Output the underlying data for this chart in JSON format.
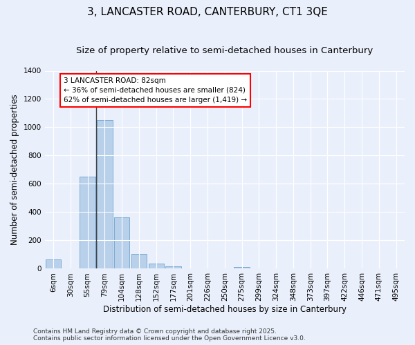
{
  "title": "3, LANCASTER ROAD, CANTERBURY, CT1 3QE",
  "subtitle": "Size of property relative to semi-detached houses in Canterbury",
  "xlabel": "Distribution of semi-detached houses by size in Canterbury",
  "ylabel": "Number of semi-detached properties",
  "categories": [
    "6sqm",
    "30sqm",
    "55sqm",
    "79sqm",
    "104sqm",
    "128sqm",
    "152sqm",
    "177sqm",
    "201sqm",
    "226sqm",
    "250sqm",
    "275sqm",
    "299sqm",
    "324sqm",
    "348sqm",
    "373sqm",
    "397sqm",
    "422sqm",
    "446sqm",
    "471sqm",
    "495sqm"
  ],
  "values": [
    65,
    0,
    650,
    1050,
    365,
    105,
    38,
    18,
    0,
    0,
    0,
    10,
    0,
    0,
    0,
    0,
    0,
    0,
    0,
    0,
    0
  ],
  "bar_color": "#b8d0ea",
  "bar_edgecolor": "#7aabd4",
  "vline_x_index": 3,
  "vline_color": "#444444",
  "annotation_text": "3 LANCASTER ROAD: 82sqm\n← 36% of semi-detached houses are smaller (824)\n62% of semi-detached houses are larger (1,419) →",
  "annotation_box_facecolor": "white",
  "annotation_box_edgecolor": "red",
  "ylim": [
    0,
    1400
  ],
  "yticks": [
    0,
    200,
    400,
    600,
    800,
    1000,
    1200,
    1400
  ],
  "background_color": "#eaf0fb",
  "grid_color": "white",
  "footer_line1": "Contains HM Land Registry data © Crown copyright and database right 2025.",
  "footer_line2": "Contains public sector information licensed under the Open Government Licence v3.0.",
  "title_fontsize": 11,
  "subtitle_fontsize": 9.5,
  "axis_label_fontsize": 8.5,
  "tick_fontsize": 7.5,
  "annotation_fontsize": 7.5,
  "footer_fontsize": 6.5
}
